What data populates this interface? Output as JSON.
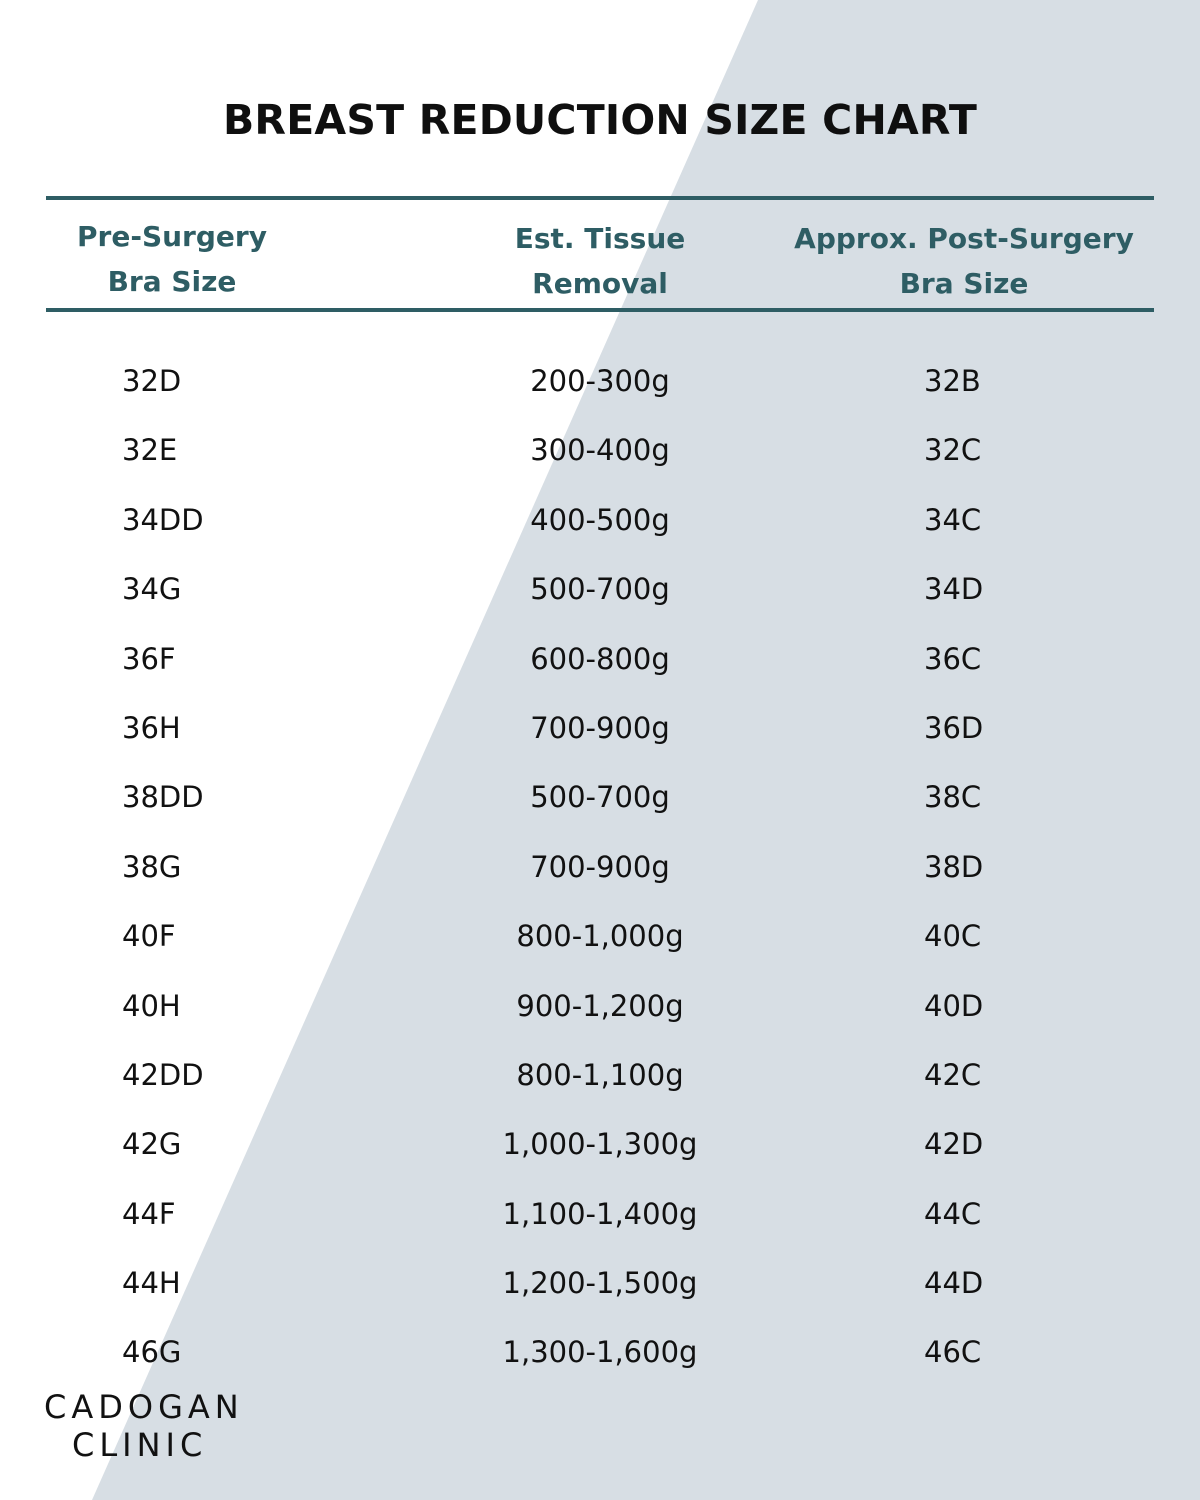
{
  "title": "BREAST REDUCTION SIZE CHART",
  "colors": {
    "accent": "#2e5d64",
    "shade": "#d7dee4",
    "text": "#111111",
    "background": "#ffffff"
  },
  "headers": {
    "pre": [
      "Pre-Surgery",
      "Bra Size"
    ],
    "est": [
      "Est. Tissue",
      "Removal"
    ],
    "post": [
      "Approx. Post-Surgery",
      "Bra Size"
    ]
  },
  "rows": [
    {
      "pre": "32D",
      "est": "200-300g",
      "post": "32B"
    },
    {
      "pre": "32E",
      "est": "300-400g",
      "post": "32C"
    },
    {
      "pre": "34DD",
      "est": "400-500g",
      "post": "34C"
    },
    {
      "pre": "34G",
      "est": "500-700g",
      "post": "34D"
    },
    {
      "pre": "36F",
      "est": "600-800g",
      "post": "36C"
    },
    {
      "pre": "36H",
      "est": "700-900g",
      "post": "36D"
    },
    {
      "pre": "38DD",
      "est": "500-700g",
      "post": "38C"
    },
    {
      "pre": "38G",
      "est": "700-900g",
      "post": "38D"
    },
    {
      "pre": "40F",
      "est": "800-1,000g",
      "post": "40C"
    },
    {
      "pre": "40H",
      "est": "900-1,200g",
      "post": "40D"
    },
    {
      "pre": "42DD",
      "est": "800-1,100g",
      "post": "42C"
    },
    {
      "pre": "42G",
      "est": "1,000-1,300g",
      "post": "42D"
    },
    {
      "pre": "44F",
      "est": "1,100-1,400g",
      "post": "44C"
    },
    {
      "pre": "44H",
      "est": "1,200-1,500g",
      "post": "44D"
    },
    {
      "pre": "46G",
      "est": "1,300-1,600g",
      "post": "46C"
    }
  ],
  "logo": [
    "CADOGAN",
    "CLINIC"
  ]
}
